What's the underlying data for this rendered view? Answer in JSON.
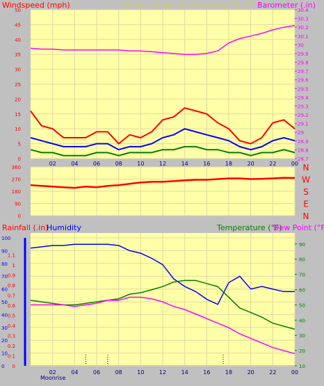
{
  "header": {
    "left_label": "Windspeed (mph)",
    "center_label": "24 hour graph day   February 23 2022",
    "right_label": "Barometer (.in)"
  },
  "colors": {
    "background": "#c0c0c0",
    "panel": "#ffffa8",
    "grid": "#e0d8a0",
    "wind_max": "#ff0000",
    "wind_avg": "#0000ff",
    "wind_min": "#008000",
    "barometer": "#ff00ff",
    "direction": "#ff0000",
    "humidity": "#0000ff",
    "temperature": "#008000",
    "dewpoint": "#ff00ff",
    "axis_left": "#ff0000",
    "axis_right": "#ff00ff"
  },
  "x_ticks": [
    "02",
    "04",
    "06",
    "08",
    "10",
    "12",
    "14",
    "16",
    "18",
    "20",
    "22",
    "00"
  ],
  "bottom_label": "Moonrise",
  "chart_data": [
    {
      "type": "line",
      "title": "24 hour graph day   February 23 2022",
      "x_range": [
        0,
        24
      ],
      "left_axis": {
        "label": "Windspeed (mph)",
        "range": [
          0,
          50
        ],
        "ticks": [
          "0",
          "5",
          "10",
          "15",
          "20",
          "25",
          "30",
          "35",
          "40",
          "45",
          "50"
        ]
      },
      "right_axis": {
        "label": "Barometer (.in)",
        "range": [
          28.7,
          30.4
        ],
        "ticks": [
          "28.7",
          "28.8",
          "28.9",
          "29",
          "29.1",
          "29.2",
          "29.3",
          "29.4",
          "29.5",
          "29.6",
          "29.7",
          "29.8",
          "29.9",
          "30",
          "30.1",
          "30.2",
          "30.3",
          "30.4"
        ]
      },
      "series": [
        {
          "role": "wind_max",
          "x": [
            0,
            1,
            2,
            3,
            4,
            5,
            6,
            7,
            8,
            9,
            10,
            11,
            12,
            13,
            14,
            15,
            16,
            17,
            18,
            19,
            20,
            21,
            22,
            23,
            24
          ],
          "values": [
            16,
            11,
            10,
            7,
            7,
            7,
            9,
            9,
            5,
            8,
            7,
            9,
            13,
            14,
            17,
            16,
            15,
            12,
            10,
            6,
            5,
            7,
            12,
            13,
            10
          ]
        },
        {
          "role": "wind_avg",
          "x": [
            0,
            1,
            2,
            3,
            4,
            5,
            6,
            7,
            8,
            9,
            10,
            11,
            12,
            13,
            14,
            15,
            16,
            17,
            18,
            19,
            20,
            21,
            22,
            23,
            24
          ],
          "values": [
            7,
            6,
            5,
            4,
            4,
            4,
            5,
            5,
            3,
            4,
            4,
            5,
            7,
            8,
            10,
            9,
            8,
            7,
            6,
            4,
            3,
            4,
            6,
            7,
            6
          ]
        },
        {
          "role": "wind_min",
          "x": [
            0,
            1,
            2,
            3,
            4,
            5,
            6,
            7,
            8,
            9,
            10,
            11,
            12,
            13,
            14,
            15,
            16,
            17,
            18,
            19,
            20,
            21,
            22,
            23,
            24
          ],
          "values": [
            3,
            2,
            2,
            1,
            1,
            1,
            2,
            2,
            1,
            2,
            2,
            2,
            3,
            3,
            4,
            4,
            3,
            3,
            2,
            2,
            1,
            2,
            2,
            3,
            2
          ]
        },
        {
          "role": "barometer",
          "x": [
            0,
            1,
            2,
            3,
            4,
            5,
            6,
            7,
            8,
            9,
            10,
            11,
            12,
            13,
            14,
            15,
            16,
            17,
            18,
            19,
            20,
            21,
            22,
            23,
            24
          ],
          "values": [
            29.96,
            29.95,
            29.95,
            29.94,
            29.94,
            29.94,
            29.94,
            29.94,
            29.94,
            29.93,
            29.93,
            29.92,
            29.91,
            29.9,
            29.89,
            29.89,
            29.9,
            29.93,
            30.02,
            30.07,
            30.1,
            30.13,
            30.17,
            30.2,
            30.22
          ]
        }
      ]
    },
    {
      "type": "scatter",
      "title": "",
      "x_range": [
        0,
        24
      ],
      "left_axis": {
        "range": [
          0,
          360
        ],
        "ticks": [
          "0",
          "90",
          "180",
          "270",
          "360"
        ]
      },
      "right_labels": [
        "N",
        "W",
        "S",
        "E",
        "N"
      ],
      "series": [
        {
          "role": "direction",
          "x": [
            0,
            1,
            2,
            3,
            4,
            5,
            6,
            7,
            8,
            9,
            10,
            11,
            12,
            13,
            14,
            15,
            16,
            17,
            18,
            19,
            20,
            21,
            22,
            23,
            24
          ],
          "values": [
            225,
            220,
            215,
            210,
            205,
            215,
            210,
            220,
            225,
            235,
            245,
            250,
            250,
            255,
            260,
            265,
            265,
            270,
            275,
            275,
            270,
            272,
            275,
            280,
            278
          ]
        }
      ]
    },
    {
      "type": "line",
      "title": "",
      "x_range": [
        0,
        24
      ],
      "labels": {
        "rainfall": "Rainfall (.in)",
        "humidity": "Humidity",
        "temperature": "Temperature (°F)",
        "dewpoint": "Dew Point (°F)"
      },
      "rain_axis": {
        "range": [
          0,
          1.2
        ],
        "ticks": [
          "0",
          "0.1",
          "0.2",
          "0.3",
          "0.4",
          "0.5",
          "0.6",
          "0.7",
          "0.8",
          "0.9",
          "1",
          "1.1"
        ]
      },
      "humidity_axis": {
        "range": [
          0,
          100
        ],
        "ticks": [
          "0",
          "10",
          "20",
          "30",
          "40",
          "50",
          "60",
          "70",
          "80",
          "90",
          "100"
        ]
      },
      "temp_axis": {
        "range": [
          10,
          94
        ],
        "ticks": [
          "10",
          "20",
          "30",
          "40",
          "50",
          "60",
          "70",
          "80",
          "90"
        ]
      },
      "series": [
        {
          "role": "humidity",
          "x": [
            0,
            1,
            2,
            3,
            4,
            5,
            6,
            7,
            8,
            9,
            10,
            11,
            12,
            13,
            14,
            15,
            16,
            17,
            18,
            19,
            20,
            21,
            22,
            23,
            24
          ],
          "values": [
            92,
            93,
            94,
            94,
            95,
            95,
            95,
            95,
            94,
            90,
            88,
            84,
            79,
            68,
            62,
            58,
            52,
            48,
            65,
            70,
            60,
            62,
            60,
            58,
            58
          ]
        },
        {
          "role": "temperature",
          "x": [
            0,
            1,
            2,
            3,
            4,
            5,
            6,
            7,
            8,
            9,
            10,
            11,
            12,
            13,
            14,
            15,
            16,
            17,
            18,
            19,
            20,
            21,
            22,
            23,
            24
          ],
          "values": [
            53,
            52,
            51,
            50,
            50,
            51,
            52,
            53,
            54,
            57,
            58,
            60,
            62,
            65,
            66,
            66,
            64,
            62,
            55,
            48,
            45,
            42,
            38,
            36,
            34
          ]
        },
        {
          "role": "dewpoint",
          "x": [
            0,
            1,
            2,
            3,
            4,
            5,
            6,
            7,
            8,
            9,
            10,
            11,
            12,
            13,
            14,
            15,
            16,
            17,
            18,
            19,
            20,
            21,
            22,
            23,
            24
          ],
          "values": [
            50,
            50,
            50,
            50,
            49,
            50,
            51,
            53,
            53,
            55,
            55,
            54,
            52,
            49,
            47,
            44,
            41,
            38,
            35,
            31,
            28,
            25,
            22,
            20,
            18
          ]
        }
      ]
    }
  ]
}
